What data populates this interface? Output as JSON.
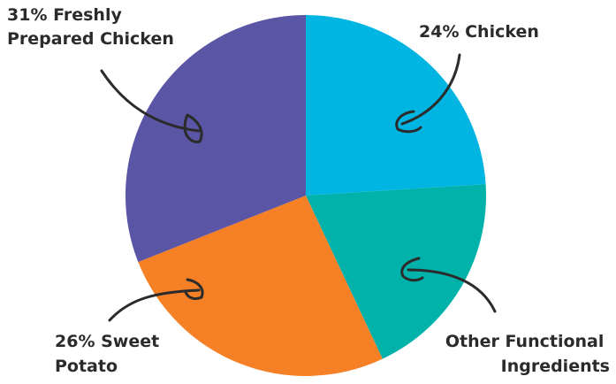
{
  "chart_data": {
    "type": "pie",
    "slices": [
      {
        "label_lines": [
          "24% Chicken"
        ],
        "value": 24,
        "color": "#00b5e2"
      },
      {
        "label_lines": [
          "Other Functional",
          "Ingredients"
        ],
        "value": 19,
        "color": "#00b2a9"
      },
      {
        "label_lines": [
          "26% Sweet",
          "Potato"
        ],
        "value": 26,
        "color": "#f58025"
      },
      {
        "label_lines": [
          "31% Freshly",
          "Prepared Chicken"
        ],
        "value": 31,
        "color": "#5b55a5"
      }
    ]
  }
}
